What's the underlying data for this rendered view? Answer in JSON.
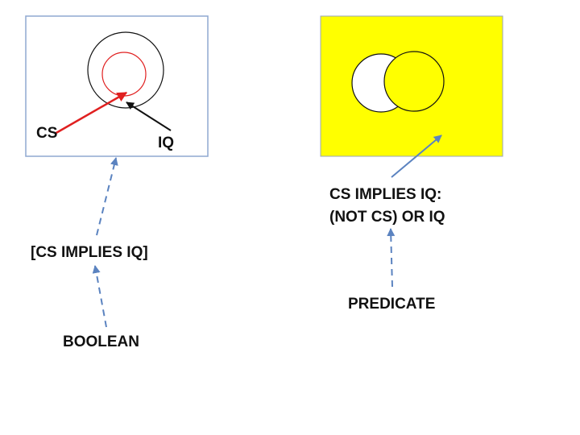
{
  "left_panel": {
    "labels": {
      "cs": "CS",
      "iq": "IQ"
    },
    "colors": {
      "cs_circle": "#e02020",
      "iq_circle": "#111111",
      "frame": "#8fa8d0"
    }
  },
  "right_panel": {
    "background": "#ffff00",
    "colors": {
      "left_circle": "#ffffff",
      "right_circle": "#ffff00"
    }
  },
  "annotations": {
    "boolean_label": "BOOLEAN",
    "boolean_expression": "[CS IMPLIES IQ]",
    "predicate_label": "PREDICATE",
    "predicate_expression_line1": "CS IMPLIES IQ:",
    "predicate_expression_line2": "(NOT CS) OR IQ"
  },
  "connector_color": "#5b83c0"
}
